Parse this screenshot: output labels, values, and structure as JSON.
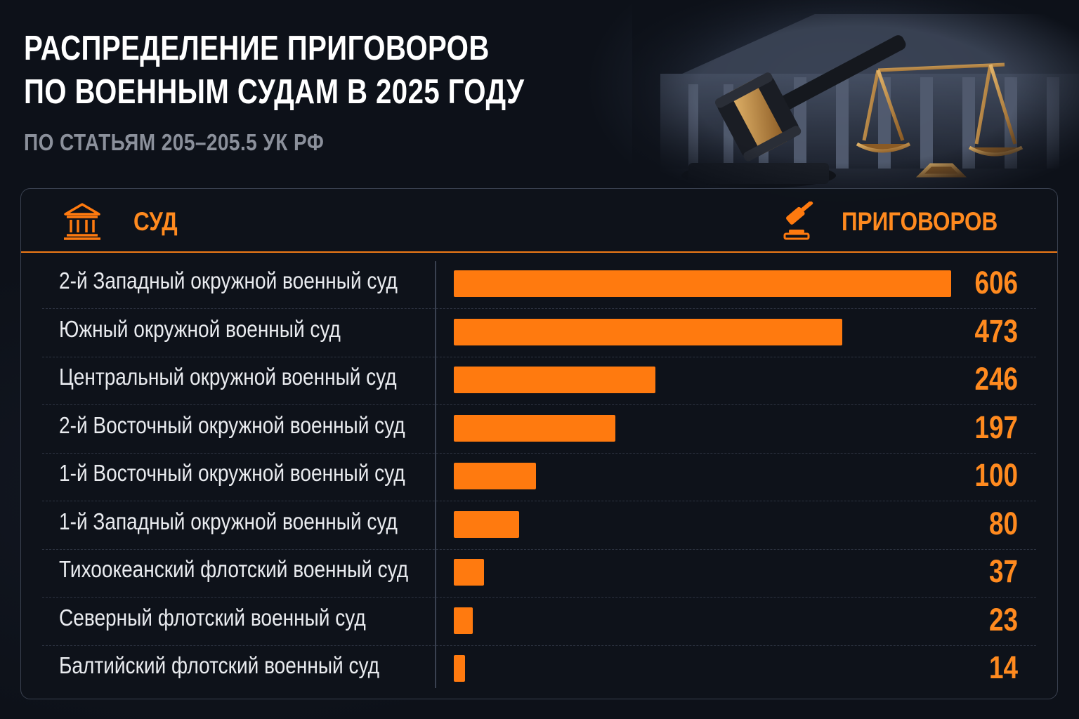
{
  "header": {
    "title_line1": "РАСПРЕДЕЛЕНИЕ ПРИГОВОРОВ",
    "title_line2": "ПО ВОЕННЫМ СУДАМ В 2025 ГОДУ",
    "subtitle": "ПО СТАТЬЯМ 205–205.5 УК РФ"
  },
  "table": {
    "col_court": "СУД",
    "col_count": "ПРИГОВОРОВ"
  },
  "colors": {
    "accent": "#ff7a0f",
    "background": "#0d1119",
    "subtitle": "#8b909b"
  },
  "icons": {
    "court": "courthouse-icon",
    "count": "gavel-icon"
  },
  "chart_data": {
    "type": "bar",
    "orientation": "horizontal",
    "categories": [
      "2-й Западный окружной военный суд",
      "Южный окружной военный суд",
      "Центральный окружной военный суд",
      "2-й Восточный окружной военный суд",
      "1-й Восточный окружной военный суд",
      "1-й Западный окружной военный суд",
      "Тихоокеанский флотский военный суд",
      "Северный флотский военный суд",
      "Балтийский флотский военный суд"
    ],
    "values": [
      606,
      473,
      246,
      197,
      100,
      80,
      37,
      23,
      14
    ],
    "value_labels": [
      "606",
      "473",
      "246",
      "197",
      "100",
      "80",
      "37",
      "23",
      "14"
    ],
    "xlim": [
      0,
      606
    ],
    "grid": false,
    "legend": "none"
  }
}
